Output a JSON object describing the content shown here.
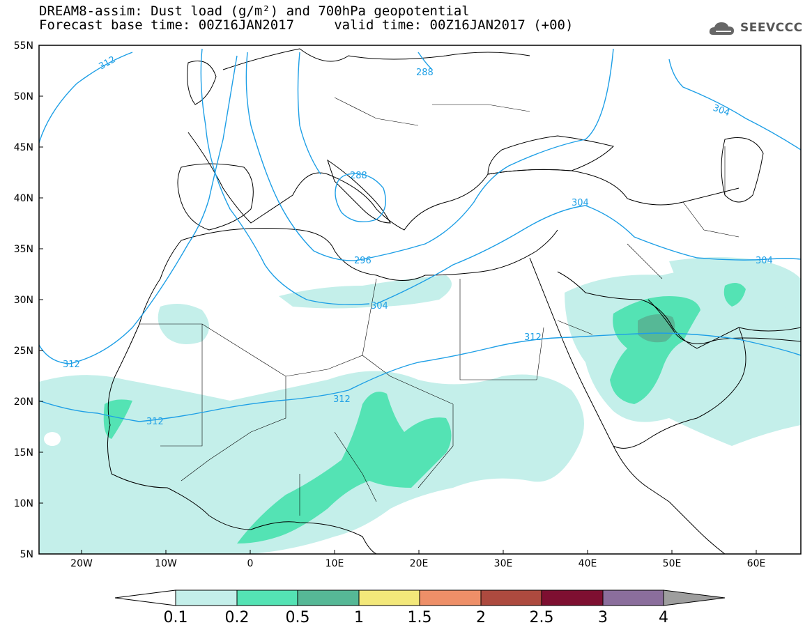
{
  "title": {
    "line1": "DREAM8-assim: Dust load (g/m²) and 700hPa geopotential",
    "line2": "Forecast base time: 00Z16JAN2017     valid time: 00Z16JAN2017 (+00)"
  },
  "logo": {
    "text": "SEEVCCC",
    "icon": "cloud-icon"
  },
  "map": {
    "lat_labels": [
      "55N",
      "50N",
      "45N",
      "40N",
      "35N",
      "30N",
      "25N",
      "20N",
      "15N",
      "10N",
      "5N"
    ],
    "lon_labels": [
      "20W",
      "10W",
      "0",
      "10E",
      "20E",
      "30E",
      "40E",
      "50E",
      "60E"
    ],
    "contour_labels": [
      "312",
      "288",
      "304",
      "288",
      "304",
      "296",
      "304",
      "304",
      "312",
      "312",
      "312",
      "312"
    ]
  },
  "colorbar": {
    "labels": [
      "0.1",
      "0.2",
      "0.5",
      "1",
      "1.5",
      "2",
      "2.5",
      "3",
      "4"
    ],
    "colors": [
      "#ffffff",
      "#c4efea",
      "#54e3b4",
      "#56b896",
      "#f3e87a",
      "#ee8f68",
      "#ad4a3f",
      "#7e0f31",
      "#8b6e9c",
      "#9e9e9e"
    ]
  },
  "colors": {
    "dust_light": "#c4efea",
    "dust_medium": "#54e3b4",
    "dust_dark": "#56b896",
    "contour": "#1e9fe6",
    "coast": "#000000"
  }
}
